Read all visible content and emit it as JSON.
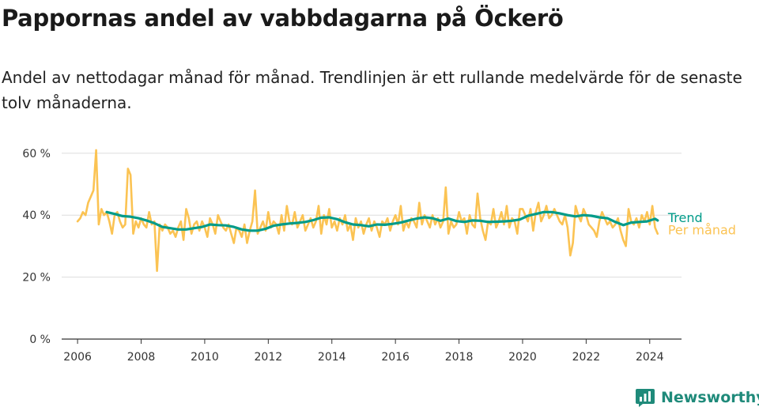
{
  "chart_data": {
    "type": "line",
    "title": "Pappornas andel av vabbdagarna på Öckerö",
    "subtitle": "Andel av nettodagar månad för månad. Trendlinjen är ett rullande medelvärde för de senaste tolv månaderna.",
    "xlabel": "",
    "ylabel": "",
    "x_ticks": [
      "2006",
      "2008",
      "2010",
      "2012",
      "2014",
      "2016",
      "2018",
      "2020",
      "2022",
      "2024"
    ],
    "y_ticks": [
      {
        "value": 0,
        "label": "0 %"
      },
      {
        "value": 20,
        "label": "20 %"
      },
      {
        "value": 40,
        "label": "40 %"
      },
      {
        "value": 60,
        "label": "60 %"
      }
    ],
    "xlim": [
      "2005-07",
      "2025-01"
    ],
    "ylim": [
      0,
      62
    ],
    "grid": true,
    "legend": "line-end labels, right",
    "series": [
      {
        "name": "Per månad",
        "color": "#fbc353",
        "points": [
          [
            "2006-01",
            38
          ],
          [
            "2006-02",
            39
          ],
          [
            "2006-03",
            41
          ],
          [
            "2006-04",
            40
          ],
          [
            "2006-05",
            44
          ],
          [
            "2006-06",
            46
          ],
          [
            "2006-07",
            48
          ],
          [
            "2006-08",
            61
          ],
          [
            "2006-09",
            37
          ],
          [
            "2006-10",
            42
          ],
          [
            "2006-11",
            40
          ],
          [
            "2006-12",
            41
          ],
          [
            "2007-01",
            38
          ],
          [
            "2007-02",
            34
          ],
          [
            "2007-03",
            40
          ],
          [
            "2007-04",
            41
          ],
          [
            "2007-05",
            38
          ],
          [
            "2007-06",
            36
          ],
          [
            "2007-07",
            37
          ],
          [
            "2007-08",
            55
          ],
          [
            "2007-09",
            53
          ],
          [
            "2007-10",
            34
          ],
          [
            "2007-11",
            38
          ],
          [
            "2007-12",
            36
          ],
          [
            "2008-01",
            39
          ],
          [
            "2008-02",
            37
          ],
          [
            "2008-03",
            36
          ],
          [
            "2008-04",
            41
          ],
          [
            "2008-05",
            37
          ],
          [
            "2008-06",
            38
          ],
          [
            "2008-07",
            22
          ],
          [
            "2008-08",
            37
          ],
          [
            "2008-09",
            35
          ],
          [
            "2008-10",
            37
          ],
          [
            "2008-11",
            36
          ],
          [
            "2008-12",
            34
          ],
          [
            "2009-01",
            35
          ],
          [
            "2009-02",
            33
          ],
          [
            "2009-03",
            36
          ],
          [
            "2009-04",
            38
          ],
          [
            "2009-05",
            32
          ],
          [
            "2009-06",
            42
          ],
          [
            "2009-07",
            39
          ],
          [
            "2009-08",
            34
          ],
          [
            "2009-09",
            37
          ],
          [
            "2009-10",
            38
          ],
          [
            "2009-11",
            35
          ],
          [
            "2009-12",
            38
          ],
          [
            "2010-01",
            36
          ],
          [
            "2010-02",
            33
          ],
          [
            "2010-03",
            39
          ],
          [
            "2010-04",
            37
          ],
          [
            "2010-05",
            34
          ],
          [
            "2010-06",
            40
          ],
          [
            "2010-07",
            38
          ],
          [
            "2010-08",
            36
          ],
          [
            "2010-09",
            35
          ],
          [
            "2010-10",
            37
          ],
          [
            "2010-11",
            34
          ],
          [
            "2010-12",
            31
          ],
          [
            "2011-01",
            36
          ],
          [
            "2011-02",
            35
          ],
          [
            "2011-03",
            33
          ],
          [
            "2011-04",
            37
          ],
          [
            "2011-05",
            31
          ],
          [
            "2011-06",
            35
          ],
          [
            "2011-07",
            38
          ],
          [
            "2011-08",
            48
          ],
          [
            "2011-09",
            34
          ],
          [
            "2011-10",
            36
          ],
          [
            "2011-11",
            38
          ],
          [
            "2011-12",
            35
          ],
          [
            "2012-01",
            41
          ],
          [
            "2012-02",
            36
          ],
          [
            "2012-03",
            38
          ],
          [
            "2012-04",
            37
          ],
          [
            "2012-05",
            34
          ],
          [
            "2012-06",
            40
          ],
          [
            "2012-07",
            35
          ],
          [
            "2012-08",
            43
          ],
          [
            "2012-09",
            38
          ],
          [
            "2012-10",
            37
          ],
          [
            "2012-11",
            41
          ],
          [
            "2012-12",
            36
          ],
          [
            "2013-01",
            38
          ],
          [
            "2013-02",
            40
          ],
          [
            "2013-03",
            35
          ],
          [
            "2013-04",
            37
          ],
          [
            "2013-05",
            39
          ],
          [
            "2013-06",
            36
          ],
          [
            "2013-07",
            38
          ],
          [
            "2013-08",
            43
          ],
          [
            "2013-09",
            34
          ],
          [
            "2013-10",
            40
          ],
          [
            "2013-11",
            37
          ],
          [
            "2013-12",
            42
          ],
          [
            "2014-01",
            36
          ],
          [
            "2014-02",
            38
          ],
          [
            "2014-03",
            35
          ],
          [
            "2014-04",
            39
          ],
          [
            "2014-05",
            37
          ],
          [
            "2014-06",
            40
          ],
          [
            "2014-07",
            35
          ],
          [
            "2014-08",
            37
          ],
          [
            "2014-09",
            32
          ],
          [
            "2014-10",
            39
          ],
          [
            "2014-11",
            36
          ],
          [
            "2014-12",
            38
          ],
          [
            "2015-01",
            34
          ],
          [
            "2015-02",
            37
          ],
          [
            "2015-03",
            39
          ],
          [
            "2015-04",
            35
          ],
          [
            "2015-05",
            38
          ],
          [
            "2015-06",
            36
          ],
          [
            "2015-07",
            33
          ],
          [
            "2015-08",
            38
          ],
          [
            "2015-09",
            37
          ],
          [
            "2015-10",
            39
          ],
          [
            "2015-11",
            35
          ],
          [
            "2015-12",
            38
          ],
          [
            "2016-01",
            40
          ],
          [
            "2016-02",
            37
          ],
          [
            "2016-03",
            43
          ],
          [
            "2016-04",
            35
          ],
          [
            "2016-05",
            38
          ],
          [
            "2016-06",
            36
          ],
          [
            "2016-07",
            39
          ],
          [
            "2016-08",
            38
          ],
          [
            "2016-09",
            36
          ],
          [
            "2016-10",
            44
          ],
          [
            "2016-11",
            37
          ],
          [
            "2016-12",
            40
          ],
          [
            "2017-01",
            38
          ],
          [
            "2017-02",
            36
          ],
          [
            "2017-03",
            40
          ],
          [
            "2017-04",
            37
          ],
          [
            "2017-05",
            39
          ],
          [
            "2017-06",
            36
          ],
          [
            "2017-07",
            38
          ],
          [
            "2017-08",
            49
          ],
          [
            "2017-09",
            34
          ],
          [
            "2017-10",
            38
          ],
          [
            "2017-11",
            36
          ],
          [
            "2017-12",
            37
          ],
          [
            "2018-01",
            41
          ],
          [
            "2018-02",
            38
          ],
          [
            "2018-03",
            39
          ],
          [
            "2018-04",
            34
          ],
          [
            "2018-05",
            40
          ],
          [
            "2018-06",
            37
          ],
          [
            "2018-07",
            36
          ],
          [
            "2018-08",
            47
          ],
          [
            "2018-09",
            39
          ],
          [
            "2018-10",
            35
          ],
          [
            "2018-11",
            32
          ],
          [
            "2018-12",
            38
          ],
          [
            "2019-01",
            37
          ],
          [
            "2019-02",
            42
          ],
          [
            "2019-03",
            36
          ],
          [
            "2019-04",
            38
          ],
          [
            "2019-05",
            41
          ],
          [
            "2019-06",
            37
          ],
          [
            "2019-07",
            43
          ],
          [
            "2019-08",
            36
          ],
          [
            "2019-09",
            39
          ],
          [
            "2019-10",
            38
          ],
          [
            "2019-11",
            34
          ],
          [
            "2019-12",
            42
          ],
          [
            "2020-01",
            42
          ],
          [
            "2020-02",
            40
          ],
          [
            "2020-03",
            38
          ],
          [
            "2020-04",
            42
          ],
          [
            "2020-05",
            35
          ],
          [
            "2020-06",
            41
          ],
          [
            "2020-07",
            44
          ],
          [
            "2020-08",
            38
          ],
          [
            "2020-09",
            40
          ],
          [
            "2020-10",
            43
          ],
          [
            "2020-11",
            39
          ],
          [
            "2020-12",
            40
          ],
          [
            "2021-01",
            42
          ],
          [
            "2021-02",
            40
          ],
          [
            "2021-03",
            38
          ],
          [
            "2021-04",
            37
          ],
          [
            "2021-05",
            40
          ],
          [
            "2021-06",
            36
          ],
          [
            "2021-07",
            27
          ],
          [
            "2021-08",
            31
          ],
          [
            "2021-09",
            43
          ],
          [
            "2021-10",
            40
          ],
          [
            "2021-11",
            38
          ],
          [
            "2021-12",
            42
          ],
          [
            "2022-01",
            40
          ],
          [
            "2022-02",
            37
          ],
          [
            "2022-03",
            36
          ],
          [
            "2022-04",
            35
          ],
          [
            "2022-05",
            33
          ],
          [
            "2022-06",
            38
          ],
          [
            "2022-07",
            41
          ],
          [
            "2022-08",
            39
          ],
          [
            "2022-09",
            37
          ],
          [
            "2022-10",
            38
          ],
          [
            "2022-11",
            36
          ],
          [
            "2022-12",
            37
          ],
          [
            "2023-01",
            39
          ],
          [
            "2023-02",
            35
          ],
          [
            "2023-03",
            32
          ],
          [
            "2023-04",
            30
          ],
          [
            "2023-05",
            42
          ],
          [
            "2023-06",
            38
          ],
          [
            "2023-07",
            37
          ],
          [
            "2023-08",
            39
          ],
          [
            "2023-09",
            36
          ],
          [
            "2023-10",
            40
          ],
          [
            "2023-11",
            38
          ],
          [
            "2023-12",
            41
          ],
          [
            "2024-01",
            37
          ],
          [
            "2024-02",
            43
          ],
          [
            "2024-03",
            36
          ],
          [
            "2024-04",
            34
          ]
        ]
      },
      {
        "name": "Trend",
        "color": "#009b89",
        "points": [
          [
            "2006-12",
            41.0
          ],
          [
            "2007-03",
            40.4
          ],
          [
            "2007-06",
            39.7
          ],
          [
            "2007-09",
            39.5
          ],
          [
            "2007-12",
            39.0
          ],
          [
            "2008-03",
            38.3
          ],
          [
            "2008-06",
            37.4
          ],
          [
            "2008-09",
            36.2
          ],
          [
            "2008-12",
            35.8
          ],
          [
            "2009-03",
            35.4
          ],
          [
            "2009-06",
            35.4
          ],
          [
            "2009-09",
            35.8
          ],
          [
            "2009-12",
            36.2
          ],
          [
            "2010-03",
            37.0
          ],
          [
            "2010-06",
            36.8
          ],
          [
            "2010-09",
            36.7
          ],
          [
            "2010-12",
            36.2
          ],
          [
            "2011-03",
            35.4
          ],
          [
            "2011-06",
            35.0
          ],
          [
            "2011-09",
            35.0
          ],
          [
            "2011-12",
            35.6
          ],
          [
            "2012-03",
            36.6
          ],
          [
            "2012-06",
            37.0
          ],
          [
            "2012-09",
            37.3
          ],
          [
            "2012-12",
            37.5
          ],
          [
            "2013-03",
            37.8
          ],
          [
            "2013-06",
            38.4
          ],
          [
            "2013-09",
            39.2
          ],
          [
            "2013-12",
            39.3
          ],
          [
            "2014-03",
            38.7
          ],
          [
            "2014-06",
            37.7
          ],
          [
            "2014-09",
            37.0
          ],
          [
            "2014-12",
            36.8
          ],
          [
            "2015-03",
            36.4
          ],
          [
            "2015-06",
            37.0
          ],
          [
            "2015-09",
            36.9
          ],
          [
            "2015-12",
            37.2
          ],
          [
            "2016-03",
            37.6
          ],
          [
            "2016-06",
            38.3
          ],
          [
            "2016-09",
            38.9
          ],
          [
            "2016-12",
            39.3
          ],
          [
            "2017-03",
            39.0
          ],
          [
            "2017-06",
            38.2
          ],
          [
            "2017-09",
            38.9
          ],
          [
            "2017-12",
            38.1
          ],
          [
            "2018-03",
            37.8
          ],
          [
            "2018-06",
            38.3
          ],
          [
            "2018-09",
            38.2
          ],
          [
            "2018-12",
            37.8
          ],
          [
            "2019-03",
            37.9
          ],
          [
            "2019-06",
            38.0
          ],
          [
            "2019-09",
            38.2
          ],
          [
            "2019-12",
            38.6
          ],
          [
            "2020-03",
            39.8
          ],
          [
            "2020-06",
            40.4
          ],
          [
            "2020-09",
            41.0
          ],
          [
            "2020-12",
            41.0
          ],
          [
            "2021-03",
            40.6
          ],
          [
            "2021-06",
            40.0
          ],
          [
            "2021-09",
            39.6
          ],
          [
            "2021-12",
            40.0
          ],
          [
            "2022-03",
            39.8
          ],
          [
            "2022-06",
            39.3
          ],
          [
            "2022-09",
            39.0
          ],
          [
            "2022-12",
            37.8
          ],
          [
            "2023-03",
            36.8
          ],
          [
            "2023-06",
            37.6
          ],
          [
            "2023-09",
            37.8
          ],
          [
            "2023-12",
            38.0
          ],
          [
            "2024-03",
            38.8
          ],
          [
            "2024-04",
            38.3
          ]
        ]
      }
    ]
  },
  "branding": {
    "logo_text": "Newsworthy",
    "logo_icon": "newsworthy-bar-chart-icon",
    "color": "#1f8a7a"
  }
}
